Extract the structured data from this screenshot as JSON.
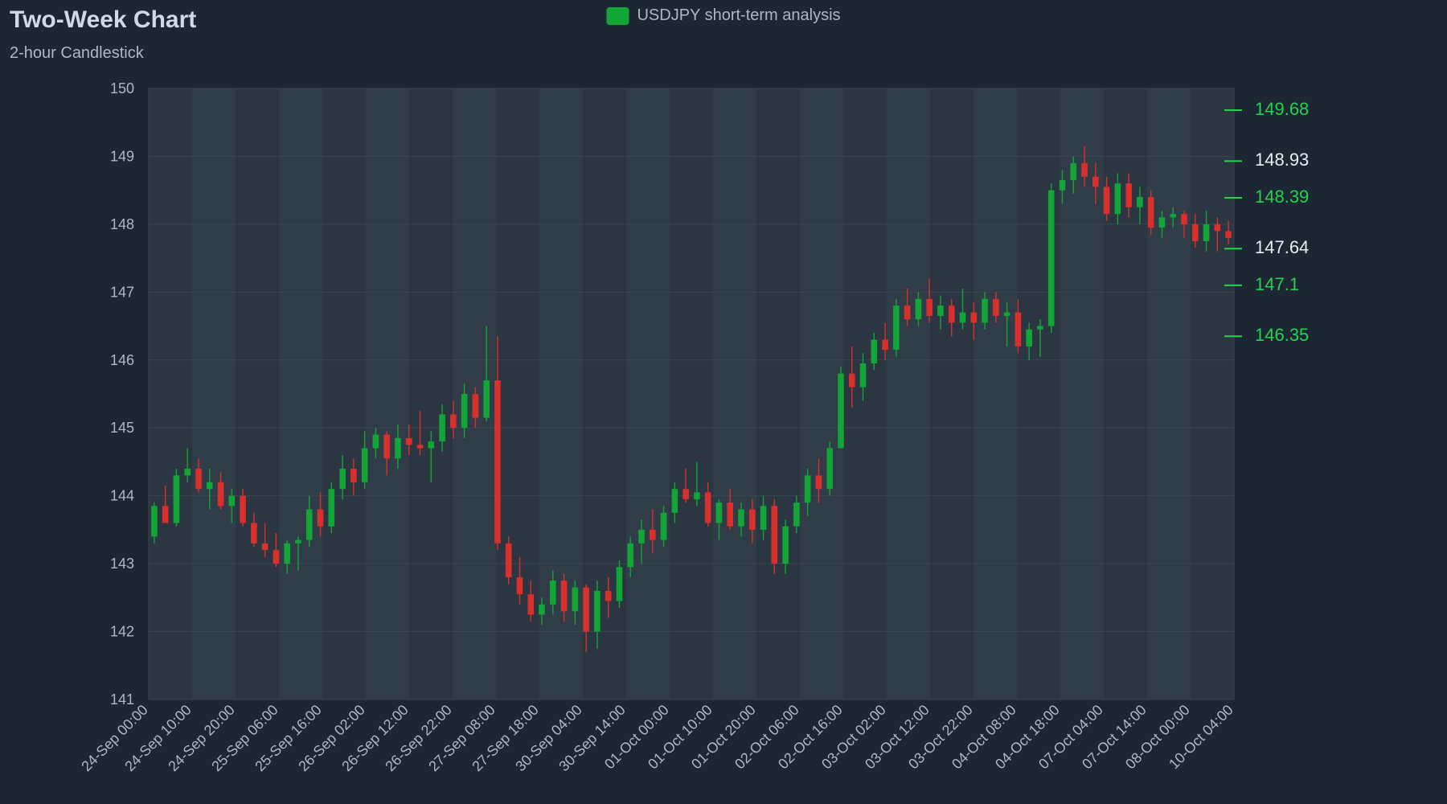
{
  "header": {
    "title": "Two-Week Chart",
    "subtitle": "2-hour Candlestick",
    "legend_label": "USDJPY short-term analysis"
  },
  "chart": {
    "type": "candlestick",
    "background_color": "#1d2733",
    "plot_background_color": "#2b3642",
    "grid_band_color": "#313c49",
    "grid_line_color": "#3a4653",
    "axis_text_color": "#aeb8c4",
    "up_color": "#12a637",
    "down_color": "#d9302c",
    "title_color": "#d0dae5",
    "label_fontsize": 18,
    "tick_fontsize": 18,
    "y_axis": {
      "min": 141,
      "max": 150,
      "tick_step": 1
    },
    "x_axis": {
      "labels": [
        "24-Sep 00:00",
        "24-Sep 10:00",
        "24-Sep 20:00",
        "25-Sep 06:00",
        "25-Sep 16:00",
        "26-Sep 02:00",
        "26-Sep 12:00",
        "26-Sep 22:00",
        "27-Sep 08:00",
        "27-Sep 18:00",
        "30-Sep 04:00",
        "30-Sep 14:00",
        "01-Oct 00:00",
        "01-Oct 10:00",
        "01-Oct 20:00",
        "02-Oct 06:00",
        "02-Oct 16:00",
        "03-Oct 02:00",
        "03-Oct 12:00",
        "03-Oct 22:00",
        "04-Oct 08:00",
        "04-Oct 18:00",
        "07-Oct 04:00",
        "07-Oct 14:00",
        "08-Oct 00:00",
        "10-Oct 04:00"
      ]
    },
    "markers": [
      {
        "value": 149.68,
        "color": "#24d34c",
        "text_color": "#24d34c"
      },
      {
        "value": 148.93,
        "color": "#24d34c",
        "text_color": "#e8eef4"
      },
      {
        "value": 148.39,
        "color": "#24d34c",
        "text_color": "#24d34c"
      },
      {
        "value": 147.64,
        "color": "#24d34c",
        "text_color": "#e8eef4"
      },
      {
        "value": 147.1,
        "color": "#24d34c",
        "text_color": "#24d34c"
      },
      {
        "value": 146.35,
        "color": "#24d34c",
        "text_color": "#24d34c"
      }
    ],
    "candles": [
      [
        143.4,
        143.9,
        143.3,
        143.85
      ],
      [
        143.85,
        144.15,
        143.7,
        143.6
      ],
      [
        143.6,
        144.4,
        143.55,
        144.3
      ],
      [
        144.3,
        144.7,
        144.2,
        144.4
      ],
      [
        144.4,
        144.55,
        144.05,
        144.1
      ],
      [
        144.1,
        144.4,
        143.8,
        144.2
      ],
      [
        144.2,
        144.35,
        143.8,
        143.85
      ],
      [
        143.85,
        144.1,
        143.6,
        144.0
      ],
      [
        144.0,
        144.1,
        143.55,
        143.6
      ],
      [
        143.6,
        143.75,
        143.25,
        143.3
      ],
      [
        143.3,
        143.6,
        143.1,
        143.2
      ],
      [
        143.2,
        143.45,
        142.95,
        143.0
      ],
      [
        143.0,
        143.35,
        142.85,
        143.3
      ],
      [
        143.3,
        143.4,
        142.9,
        143.35
      ],
      [
        143.35,
        144.0,
        143.25,
        143.8
      ],
      [
        143.8,
        144.05,
        143.4,
        143.55
      ],
      [
        143.55,
        144.2,
        143.45,
        144.1
      ],
      [
        144.1,
        144.6,
        143.95,
        144.4
      ],
      [
        144.4,
        144.55,
        144.0,
        144.2
      ],
      [
        144.2,
        144.95,
        144.1,
        144.7
      ],
      [
        144.7,
        145.0,
        144.55,
        144.9
      ],
      [
        144.9,
        144.95,
        144.3,
        144.55
      ],
      [
        144.55,
        145.05,
        144.4,
        144.85
      ],
      [
        144.85,
        145.05,
        144.6,
        144.75
      ],
      [
        144.75,
        145.25,
        144.6,
        144.7
      ],
      [
        144.7,
        144.95,
        144.2,
        144.8
      ],
      [
        144.8,
        145.35,
        144.65,
        145.2
      ],
      [
        145.2,
        145.4,
        144.85,
        145.0
      ],
      [
        145.0,
        145.65,
        144.85,
        145.5
      ],
      [
        145.5,
        145.6,
        145.0,
        145.15
      ],
      [
        145.15,
        146.5,
        145.1,
        145.7
      ],
      [
        145.7,
        146.35,
        143.2,
        143.3
      ],
      [
        143.3,
        143.4,
        142.7,
        142.8
      ],
      [
        142.8,
        143.1,
        142.4,
        142.55
      ],
      [
        142.55,
        142.75,
        142.15,
        142.25
      ],
      [
        142.25,
        142.5,
        142.1,
        142.4
      ],
      [
        142.4,
        142.9,
        142.25,
        142.75
      ],
      [
        142.75,
        142.85,
        142.15,
        142.3
      ],
      [
        142.3,
        142.75,
        142.1,
        142.65
      ],
      [
        142.65,
        142.7,
        141.7,
        142.0
      ],
      [
        142.0,
        142.75,
        141.75,
        142.6
      ],
      [
        142.6,
        142.8,
        142.2,
        142.45
      ],
      [
        142.45,
        143.05,
        142.35,
        142.95
      ],
      [
        142.95,
        143.4,
        142.8,
        143.3
      ],
      [
        143.3,
        143.65,
        143.0,
        143.5
      ],
      [
        143.5,
        143.8,
        143.15,
        143.35
      ],
      [
        143.35,
        143.85,
        143.25,
        143.75
      ],
      [
        143.75,
        144.2,
        143.6,
        144.1
      ],
      [
        144.1,
        144.4,
        143.9,
        143.95
      ],
      [
        143.95,
        144.5,
        143.85,
        144.05
      ],
      [
        144.05,
        144.2,
        143.55,
        143.6
      ],
      [
        143.6,
        143.95,
        143.35,
        143.9
      ],
      [
        143.9,
        144.1,
        143.5,
        143.55
      ],
      [
        143.55,
        143.9,
        143.4,
        143.8
      ],
      [
        143.8,
        143.95,
        143.3,
        143.5
      ],
      [
        143.5,
        144.0,
        143.35,
        143.85
      ],
      [
        143.85,
        143.95,
        142.85,
        143.0
      ],
      [
        143.0,
        143.65,
        142.85,
        143.55
      ],
      [
        143.55,
        144.0,
        143.45,
        143.9
      ],
      [
        143.9,
        144.4,
        143.7,
        144.3
      ],
      [
        144.3,
        144.55,
        143.9,
        144.1
      ],
      [
        144.1,
        144.8,
        144.0,
        144.7
      ],
      [
        144.7,
        145.9,
        144.7,
        145.8
      ],
      [
        145.8,
        146.2,
        145.3,
        145.6
      ],
      [
        145.6,
        146.1,
        145.4,
        145.95
      ],
      [
        145.95,
        146.4,
        145.85,
        146.3
      ],
      [
        146.3,
        146.55,
        146.0,
        146.15
      ],
      [
        146.15,
        146.9,
        146.05,
        146.8
      ],
      [
        146.8,
        147.05,
        146.5,
        146.6
      ],
      [
        146.6,
        147.0,
        146.5,
        146.9
      ],
      [
        146.9,
        147.2,
        146.55,
        146.65
      ],
      [
        146.65,
        146.95,
        146.45,
        146.8
      ],
      [
        146.8,
        146.9,
        146.35,
        146.55
      ],
      [
        146.55,
        147.05,
        146.45,
        146.7
      ],
      [
        146.7,
        146.85,
        146.3,
        146.55
      ],
      [
        146.55,
        147.0,
        146.45,
        146.9
      ],
      [
        146.9,
        147.0,
        146.55,
        146.65
      ],
      [
        146.65,
        146.85,
        146.2,
        146.7
      ],
      [
        146.7,
        146.9,
        146.1,
        146.2
      ],
      [
        146.2,
        146.55,
        146.0,
        146.45
      ],
      [
        146.45,
        146.6,
        146.05,
        146.5
      ],
      [
        146.5,
        148.6,
        146.4,
        148.5
      ],
      [
        148.5,
        148.8,
        148.3,
        148.65
      ],
      [
        148.65,
        149.0,
        148.45,
        148.9
      ],
      [
        148.9,
        149.15,
        148.55,
        148.7
      ],
      [
        148.7,
        148.9,
        148.3,
        148.55
      ],
      [
        148.55,
        148.7,
        148.05,
        148.15
      ],
      [
        148.15,
        148.75,
        148.0,
        148.6
      ],
      [
        148.6,
        148.75,
        148.1,
        148.25
      ],
      [
        148.25,
        148.55,
        148.0,
        148.4
      ],
      [
        148.4,
        148.5,
        147.85,
        147.95
      ],
      [
        147.95,
        148.2,
        147.8,
        148.1
      ],
      [
        148.1,
        148.25,
        147.95,
        148.15
      ],
      [
        148.15,
        148.2,
        147.8,
        148.0
      ],
      [
        148.0,
        148.15,
        147.65,
        147.75
      ],
      [
        147.75,
        148.2,
        147.6,
        148.0
      ],
      [
        148.0,
        148.1,
        147.6,
        147.9
      ],
      [
        147.9,
        148.05,
        147.7,
        147.8
      ]
    ]
  }
}
